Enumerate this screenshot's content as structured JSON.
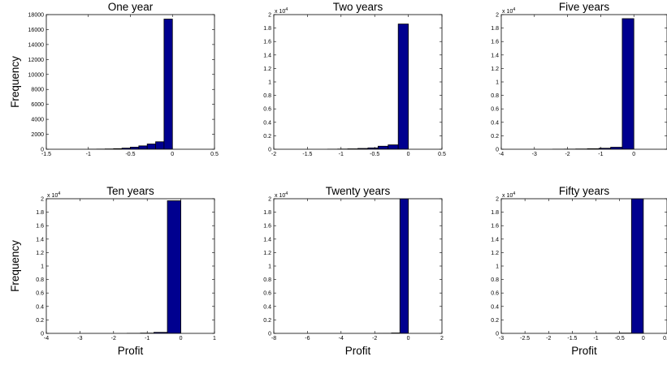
{
  "chart_data": [
    {
      "type": "bar",
      "title": "One year",
      "ylabel": "Frequency",
      "xlabel": "",
      "xlim": [
        -1.5,
        0.5
      ],
      "xticks": [
        -1.5,
        -1,
        -0.5,
        0,
        0.5
      ],
      "ylim": [
        0,
        18000
      ],
      "yticks": [
        0,
        2000,
        4000,
        6000,
        8000,
        10000,
        12000,
        14000,
        16000,
        18000
      ],
      "ytick_labels": [
        "0",
        "2000",
        "4000",
        "6000",
        "8000",
        "10000",
        "12000",
        "14000",
        "16000",
        "18000"
      ],
      "y_exponent": "",
      "bar_width": 0.1,
      "bins": [
        -0.9,
        -0.8,
        -0.7,
        -0.6,
        -0.5,
        -0.4,
        -0.3,
        -0.2,
        -0.1,
        0.0
      ],
      "values": [
        10,
        20,
        40,
        80,
        150,
        280,
        450,
        700,
        1000,
        17400
      ],
      "bar_color": "#00008f",
      "edge_color": "#000000"
    },
    {
      "type": "bar",
      "title": "Two years",
      "ylabel": "",
      "xlabel": "",
      "xlim": [
        -2,
        0.5
      ],
      "xticks": [
        -2,
        -1.5,
        -1,
        -0.5,
        0,
        0.5
      ],
      "ylim": [
        0,
        20000
      ],
      "yticks": [
        0,
        2000,
        4000,
        6000,
        8000,
        10000,
        12000,
        14000,
        16000,
        18000,
        20000
      ],
      "ytick_labels": [
        "0",
        "0.2",
        "0.4",
        "0.6",
        "0.8",
        "1",
        "1.2",
        "1.4",
        "1.6",
        "1.8",
        "2"
      ],
      "y_exponent": "4",
      "bar_width": 0.15,
      "bins": [
        -1.05,
        -0.9,
        -0.75,
        -0.6,
        -0.45,
        -0.3,
        -0.15,
        0.0
      ],
      "values": [
        10,
        30,
        60,
        120,
        200,
        450,
        650,
        18600
      ],
      "bar_color": "#00008f",
      "edge_color": "#000000"
    },
    {
      "type": "bar",
      "title": "Five years",
      "ylabel": "",
      "xlabel": "",
      "xlim": [
        -4,
        1
      ],
      "xticks": [
        -4,
        -3,
        -2,
        -1,
        0
      ],
      "ylim": [
        0,
        20000
      ],
      "yticks": [
        0,
        2000,
        4000,
        6000,
        8000,
        10000,
        12000,
        14000,
        16000,
        18000,
        20000
      ],
      "ytick_labels": [
        "0",
        "0.2",
        "0.4",
        "0.6",
        "0.8",
        "1",
        "1.2",
        "1.4",
        "1.6",
        "1.8",
        "2"
      ],
      "y_exponent": "4",
      "bar_width": 0.35,
      "bins": [
        -2.1,
        -1.75,
        -1.4,
        -1.05,
        -0.7,
        -0.35,
        0.0
      ],
      "values": [
        10,
        20,
        40,
        80,
        150,
        300,
        19400
      ],
      "bar_color": "#00008f",
      "edge_color": "#000000"
    },
    {
      "type": "bar",
      "title": "Ten years",
      "ylabel": "Frequency",
      "xlabel": "Profit",
      "xlim": [
        -4,
        1
      ],
      "xticks": [
        -4,
        -3,
        -2,
        -1,
        0,
        1
      ],
      "ylim": [
        0,
        20000
      ],
      "yticks": [
        0,
        2000,
        4000,
        6000,
        8000,
        10000,
        12000,
        14000,
        16000,
        18000,
        20000
      ],
      "ytick_labels": [
        "0",
        "0.2",
        "0.4",
        "0.6",
        "0.8",
        "1",
        "1.2",
        "1.4",
        "1.6",
        "1.8",
        "2"
      ],
      "y_exponent": "4",
      "bar_width": 0.4,
      "bins": [
        -1.2,
        -0.8,
        -0.4,
        0.0
      ],
      "values": [
        10,
        40,
        150,
        19700
      ],
      "bar_color": "#00008f",
      "edge_color": "#000000"
    },
    {
      "type": "bar",
      "title": "Twenty years",
      "ylabel": "",
      "xlabel": "Profit",
      "xlim": [
        -8,
        2
      ],
      "xticks": [
        -8,
        -6,
        -4,
        -2,
        0,
        2
      ],
      "ylim": [
        0,
        20000
      ],
      "yticks": [
        0,
        2000,
        4000,
        6000,
        8000,
        10000,
        12000,
        14000,
        16000,
        18000,
        20000
      ],
      "ytick_labels": [
        "0",
        "0.2",
        "0.4",
        "0.6",
        "0.8",
        "1",
        "1.2",
        "1.4",
        "1.6",
        "1.8",
        "2"
      ],
      "y_exponent": "4",
      "bar_width": 0.5,
      "bins": [
        -1.5,
        -1.0,
        -0.5,
        0.0
      ],
      "values": [
        5,
        10,
        60,
        20000
      ],
      "bar_color": "#00008f",
      "edge_color": "#000000"
    },
    {
      "type": "bar",
      "title": "Fifty years",
      "ylabel": "",
      "xlabel": "Profit",
      "xlim": [
        -3,
        0.5
      ],
      "xticks": [
        -3,
        -2.5,
        -2,
        -1.5,
        -1,
        -0.5,
        0,
        0.5
      ],
      "ylim": [
        0,
        20000
      ],
      "yticks": [
        0,
        2000,
        4000,
        6000,
        8000,
        10000,
        12000,
        14000,
        16000,
        18000,
        20000
      ],
      "ytick_labels": [
        "0",
        "0.2",
        "0.4",
        "0.6",
        "0.8",
        "1",
        "1.2",
        "1.4",
        "1.6",
        "1.8",
        "2"
      ],
      "y_exponent": "4",
      "bar_width": 0.25,
      "bins": [
        -0.75,
        -0.5,
        -0.25,
        0.0
      ],
      "values": [
        5,
        10,
        40,
        20000
      ],
      "bar_color": "#00008f",
      "edge_color": "#000000"
    }
  ]
}
